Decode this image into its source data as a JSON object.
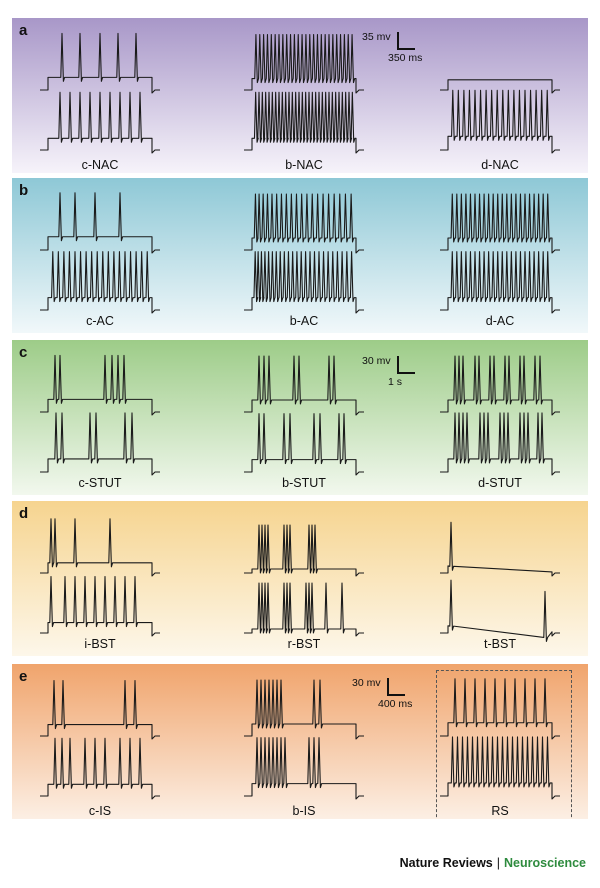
{
  "colors": {
    "trace": "#1a1a1a",
    "journal_green": "#2e8b3e"
  },
  "panels": [
    {
      "letter": "a",
      "bg": [
        "#a897c8",
        "#f6f3fa"
      ],
      "labels": [
        "c-NAC",
        "b-NAC",
        "d-NAC"
      ],
      "scale": {
        "v": "35 mv",
        "h": "350 ms"
      },
      "dashed_last": false
    },
    {
      "letter": "b",
      "bg": [
        "#8ec8d6",
        "#f1f8fa"
      ],
      "labels": [
        "c-AC",
        "b-AC",
        "d-AC"
      ],
      "scale": null,
      "dashed_last": false
    },
    {
      "letter": "c",
      "bg": [
        "#9dcc88",
        "#f2f8ee"
      ],
      "labels": [
        "c-STUT",
        "b-STUT",
        "d-STUT"
      ],
      "scale": {
        "v": "30 mv",
        "h": "1 s"
      },
      "dashed_last": false
    },
    {
      "letter": "d",
      "bg": [
        "#f6d48f",
        "#fdf7ea"
      ],
      "labels": [
        "i-BST",
        "r-BST",
        "t-BST"
      ],
      "scale": null,
      "dashed_last": false
    },
    {
      "letter": "e",
      "bg": [
        "#f0a46c",
        "#fcefe4"
      ],
      "labels": [
        "c-IS",
        "b-IS",
        "RS"
      ],
      "scale": {
        "v": "30 mv",
        "h": "400 ms"
      },
      "dashed_last": true
    }
  ],
  "footer": {
    "publisher": "Nature Reviews",
    "separator": "|",
    "journal": "Neuroscience"
  }
}
